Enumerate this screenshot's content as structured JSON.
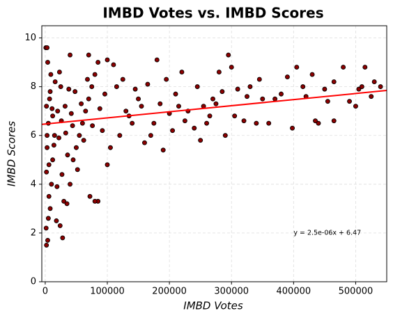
{
  "chart_data": {
    "type": "scatter",
    "title": "IMBD Votes vs. IMBD Scores",
    "xlabel": "IMBD Votes",
    "ylabel": "IMBD Scores",
    "annotation": {
      "text": "y = 2.5e-06x + 6.47",
      "x": 400000,
      "y": 2
    },
    "fit": {
      "slope": 2.5e-06,
      "intercept": 6.47,
      "color": "#ff0000"
    },
    "xlim": [
      -5500,
      550000
    ],
    "ylim": [
      0,
      10.5
    ],
    "xticks": [
      0,
      100000,
      200000,
      300000,
      400000,
      500000
    ],
    "yticks": [
      0,
      2,
      4,
      6,
      8,
      10
    ],
    "grid": true,
    "series": [
      {
        "color": "#8b0000",
        "x": [
          1000,
          3000,
          2000,
          4000,
          1500,
          5000,
          8000,
          6000,
          10000,
          2000,
          12000,
          3000,
          15000,
          5000,
          20000,
          7000,
          25000,
          9000,
          4000,
          30000,
          28000,
          18000,
          24000,
          35000,
          40000,
          45000,
          50000,
          55000,
          60000,
          65000,
          70000,
          75000,
          80000,
          85000,
          40000,
          70000,
          85000,
          80000,
          72000,
          100000,
          100000,
          110000,
          105000,
          120000,
          130000,
          115000,
          140000,
          150000,
          160000,
          170000,
          180000,
          190000,
          200000,
          210000,
          220000,
          230000,
          240000,
          250000,
          260000,
          270000,
          280000,
          290000,
          295000,
          300000,
          310000,
          320000,
          330000,
          340000,
          350000,
          360000,
          380000,
          390000,
          398000,
          405000,
          420000,
          430000,
          440000,
          450000,
          465000,
          465000,
          480000,
          490000,
          500000,
          505000,
          515000,
          530000,
          540000,
          8000,
          12000,
          16000,
          22000,
          26000,
          32000,
          36000,
          42000,
          48000,
          52000,
          58000,
          62000,
          68000,
          76000,
          88000,
          92000,
          96000,
          3000,
          6000,
          11000,
          14000,
          19000,
          23000,
          27000,
          33000,
          38000,
          44000,
          125000,
          135000,
          145000,
          155000,
          165000,
          175000,
          185000,
          195000,
          205000,
          215000,
          225000,
          245000,
          255000,
          265000,
          275000,
          285000,
          305000,
          325000,
          345000,
          370000,
          415000,
          435000,
          455000,
          510000,
          525000,
          2000
        ],
        "values": [
          9.6,
          9.6,
          1.5,
          1.7,
          2.2,
          2.6,
          3.0,
          3.5,
          4.0,
          4.5,
          5.0,
          5.5,
          6.0,
          6.5,
          7.0,
          7.5,
          8.0,
          8.5,
          9.0,
          3.3,
          1.8,
          2.5,
          2.3,
          3.2,
          4.0,
          5.0,
          5.5,
          6.0,
          6.5,
          7.0,
          7.5,
          8.0,
          8.5,
          9.0,
          9.3,
          9.3,
          3.3,
          3.3,
          3.5,
          4.8,
          9.1,
          8.9,
          5.5,
          6.0,
          7.0,
          8.0,
          6.5,
          7.5,
          5.7,
          6.0,
          9.1,
          5.4,
          6.9,
          7.7,
          8.6,
          7.0,
          6.3,
          5.8,
          6.5,
          7.5,
          8.6,
          6.0,
          9.3,
          8.8,
          7.9,
          6.6,
          8.0,
          6.5,
          7.5,
          6.5,
          7.7,
          8.4,
          6.3,
          8.8,
          7.6,
          8.5,
          6.5,
          7.9,
          6.6,
          8.2,
          8.8,
          7.4,
          7.2,
          7.9,
          8.8,
          8.2,
          8.0,
          7.8,
          6.8,
          8.2,
          5.9,
          6.6,
          7.2,
          5.2,
          6.9,
          7.8,
          4.6,
          7.3,
          5.8,
          8.3,
          6.4,
          7.1,
          6.2,
          7.7,
          6.0,
          4.8,
          7.1,
          5.6,
          3.9,
          8.6,
          4.4,
          6.1,
          7.9,
          6.4,
          8.3,
          6.8,
          7.9,
          7.2,
          8.1,
          6.5,
          7.3,
          8.3,
          6.2,
          7.2,
          6.6,
          8.0,
          7.2,
          6.8,
          7.3,
          7.8,
          6.8,
          7.6,
          8.3,
          7.5,
          8.0,
          6.6,
          7.4,
          8.0,
          7.6,
          7.2
        ]
      }
    ]
  }
}
